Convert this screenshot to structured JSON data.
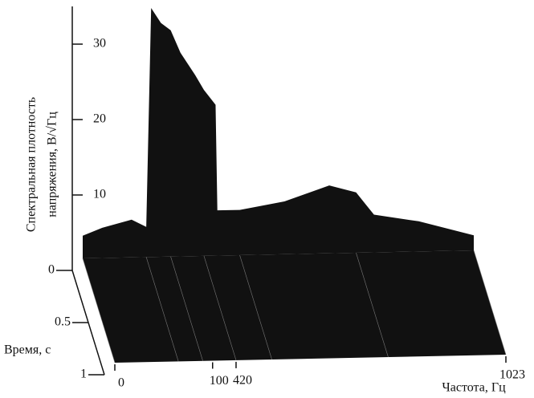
{
  "chart_data": {
    "type": "waterfall3d",
    "zlabel": [
      "Спектральная плотность",
      "напряжения, В/√Гц"
    ],
    "xlabel": "Частота, Гц",
    "ylabel": "Время, с",
    "xlim": [
      0,
      1023
    ],
    "xticks": [
      0,
      100,
      420,
      1023
    ],
    "ylim": [
      0,
      1
    ],
    "yticks": [
      0,
      0.5,
      1
    ],
    "zlim": [
      0,
      35
    ],
    "zticks": [
      10,
      20,
      30
    ],
    "x": [
      0,
      20,
      50,
      65,
      70,
      80,
      90,
      100,
      300,
      420,
      446,
      450,
      500,
      600,
      700,
      760,
      800,
      900,
      1023
    ],
    "values": [
      3,
      4,
      5,
      4,
      33,
      31,
      30,
      27,
      24,
      22,
      20,
      6,
      6,
      7,
      9,
      8,
      5,
      4,
      2
    ],
    "color": "#111111"
  }
}
